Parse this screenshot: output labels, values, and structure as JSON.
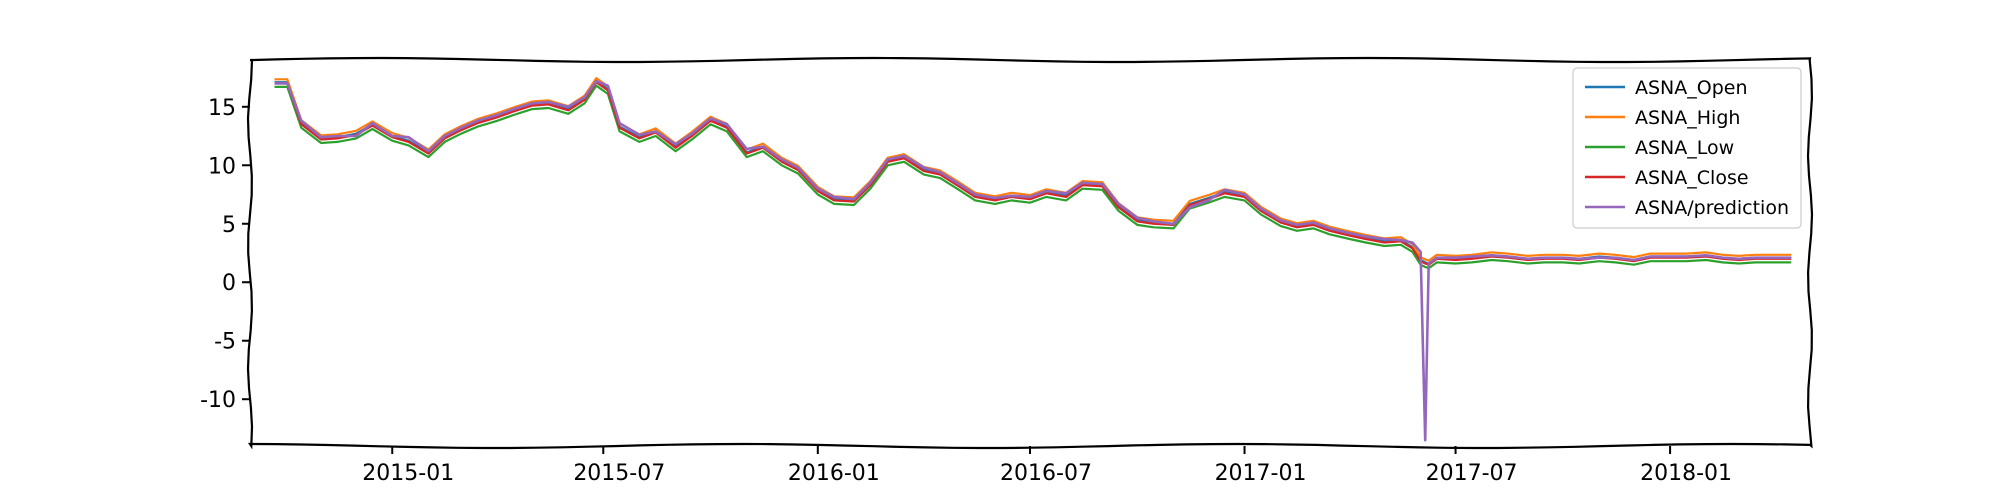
{
  "chart_data": {
    "type": "line",
    "title": "",
    "xlabel": "",
    "ylabel": "",
    "xlim": [
      "2014-09-01",
      "2018-05-01"
    ],
    "ylim": [
      -14,
      19
    ],
    "grid": false,
    "legend_position": "top-right",
    "x_ticks": [
      {
        "date": "2015-01-01",
        "label": "2015-01"
      },
      {
        "date": "2015-07-01",
        "label": "2015-07"
      },
      {
        "date": "2016-01-01",
        "label": "2016-01"
      },
      {
        "date": "2016-07-01",
        "label": "2016-07"
      },
      {
        "date": "2017-01-01",
        "label": "2017-01"
      },
      {
        "date": "2017-07-01",
        "label": "2017-07"
      },
      {
        "date": "2018-01-01",
        "label": "2018-01"
      }
    ],
    "y_ticks": [
      {
        "value": 15,
        "label": "15"
      },
      {
        "value": 10,
        "label": "10"
      },
      {
        "value": 5,
        "label": "5"
      },
      {
        "value": 0,
        "label": "0"
      },
      {
        "value": -5,
        "label": "-5"
      },
      {
        "value": -10,
        "label": "-10"
      }
    ],
    "dates": [
      "2014-09-22",
      "2014-10-03",
      "2014-10-15",
      "2014-11-01",
      "2014-11-15",
      "2014-12-01",
      "2014-12-15",
      "2015-01-01",
      "2015-01-15",
      "2015-02-01",
      "2015-02-15",
      "2015-03-01",
      "2015-03-15",
      "2015-04-01",
      "2015-04-15",
      "2015-05-01",
      "2015-05-15",
      "2015-06-01",
      "2015-06-15",
      "2015-06-25",
      "2015-07-05",
      "2015-07-15",
      "2015-08-01",
      "2015-08-15",
      "2015-09-01",
      "2015-09-15",
      "2015-10-01",
      "2015-10-15",
      "2015-11-01",
      "2015-11-15",
      "2015-12-01",
      "2015-12-15",
      "2016-01-01",
      "2016-01-15",
      "2016-02-01",
      "2016-02-15",
      "2016-03-01",
      "2016-03-15",
      "2016-04-01",
      "2016-04-15",
      "2016-05-01",
      "2016-05-15",
      "2016-06-01",
      "2016-06-15",
      "2016-07-01",
      "2016-07-15",
      "2016-08-01",
      "2016-08-15",
      "2016-09-01",
      "2016-09-15",
      "2016-10-01",
      "2016-10-15",
      "2016-11-01",
      "2016-11-15",
      "2016-12-01",
      "2016-12-15",
      "2017-01-01",
      "2017-01-15",
      "2017-02-01",
      "2017-02-15",
      "2017-03-01",
      "2017-03-15",
      "2017-04-01",
      "2017-04-15",
      "2017-05-01",
      "2017-05-15",
      "2017-05-25",
      "2017-06-01",
      "2017-06-05",
      "2017-06-08",
      "2017-06-15",
      "2017-07-01",
      "2017-07-15",
      "2017-08-01",
      "2017-08-15",
      "2017-09-01",
      "2017-09-15",
      "2017-10-01",
      "2017-10-15",
      "2017-11-01",
      "2017-11-15",
      "2017-12-01",
      "2017-12-15",
      "2018-01-01",
      "2018-01-15",
      "2018-02-01",
      "2018-02-15",
      "2018-03-01",
      "2018-03-15",
      "2018-04-01",
      "2018-04-15"
    ],
    "close": [
      17.0,
      17.0,
      13.5,
      12.2,
      12.3,
      12.6,
      13.4,
      12.4,
      12.0,
      11.0,
      12.3,
      13.0,
      13.6,
      14.1,
      14.6,
      15.1,
      15.2,
      14.7,
      15.6,
      17.1,
      16.4,
      13.2,
      12.3,
      12.8,
      11.5,
      12.5,
      13.8,
      13.2,
      11.0,
      11.5,
      10.3,
      9.6,
      7.8,
      7.0,
      6.9,
      8.3,
      10.3,
      10.6,
      9.5,
      9.2,
      8.2,
      7.3,
      7.0,
      7.3,
      7.1,
      7.6,
      7.3,
      8.3,
      8.2,
      6.4,
      5.2,
      5.0,
      4.9,
      6.6,
      7.1,
      7.6,
      7.3,
      6.1,
      5.1,
      4.7,
      4.9,
      4.4,
      4.0,
      3.7,
      3.4,
      3.5,
      2.9,
      1.8,
      1.6,
      1.5,
      2.0,
      1.9,
      2.0,
      2.2,
      2.1,
      1.9,
      2.0,
      2.0,
      1.9,
      2.1,
      2.0,
      1.8,
      2.1,
      2.1,
      2.1,
      2.2,
      2.0,
      1.9,
      2.0,
      2.0,
      2.0
    ],
    "prediction": [
      17.0,
      17.0,
      13.8,
      12.4,
      12.5,
      12.5,
      13.6,
      12.5,
      12.4,
      11.2,
      12.5,
      13.2,
      13.8,
      14.3,
      14.8,
      15.3,
      15.4,
      15.0,
      15.8,
      17.2,
      16.8,
      13.6,
      12.6,
      12.9,
      11.8,
      12.7,
      14.0,
      13.5,
      11.4,
      11.6,
      10.5,
      9.8,
      8.0,
      7.3,
      7.1,
      8.5,
      10.5,
      10.8,
      9.8,
      9.4,
      8.4,
      7.5,
      7.2,
      7.4,
      7.3,
      7.8,
      7.6,
      8.5,
      8.4,
      6.7,
      5.5,
      5.2,
      5.0,
      6.4,
      7.0,
      7.9,
      7.5,
      6.3,
      5.3,
      4.9,
      5.1,
      4.6,
      4.2,
      3.9,
      3.7,
      3.6,
      3.4,
      2.6,
      -13.5,
      1.6,
      2.1,
      2.1,
      2.2,
      2.3,
      2.2,
      2.0,
      2.1,
      2.1,
      2.0,
      2.1,
      2.1,
      1.9,
      2.2,
      2.2,
      2.2,
      2.3,
      2.1,
      2.0,
      2.1,
      2.1,
      2.1
    ],
    "series": [
      {
        "name": "ASNA_Open",
        "color": "#1f77b4",
        "source": "close",
        "offset": 0.1
      },
      {
        "name": "ASNA_High",
        "color": "#ff7f0e",
        "source": "close",
        "offset": 0.35
      },
      {
        "name": "ASNA_Low",
        "color": "#2ca02c",
        "source": "close",
        "offset": -0.3
      },
      {
        "name": "ASNA_Close",
        "color": "#d62728",
        "source": "close",
        "offset": 0
      },
      {
        "name": "ASNA/prediction",
        "color": "#9467bd",
        "source": "prediction",
        "offset": 0
      }
    ]
  }
}
